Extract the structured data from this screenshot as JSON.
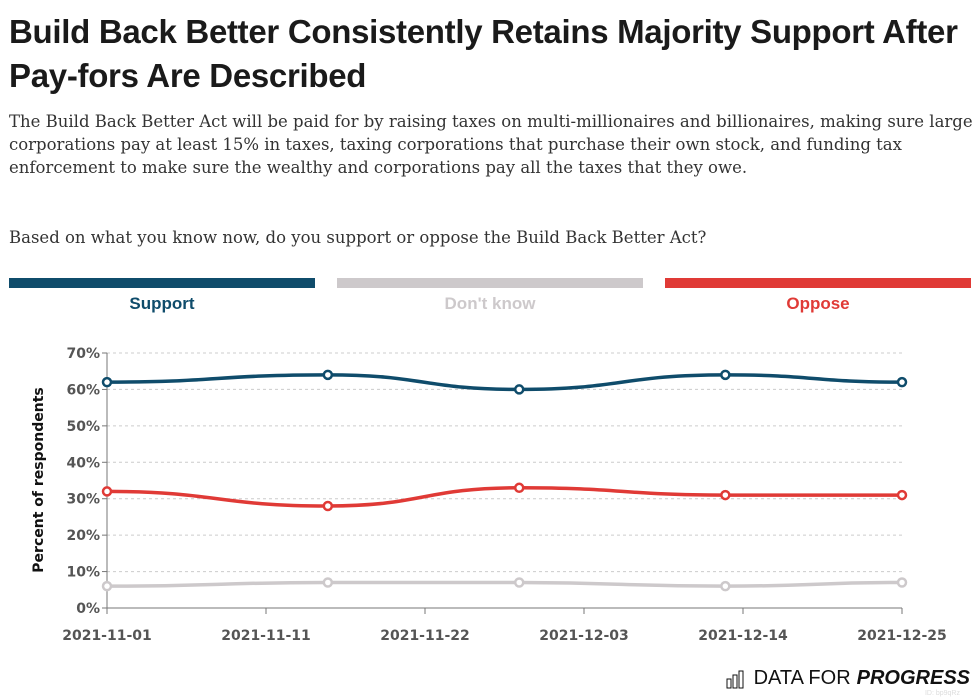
{
  "title": "Build Back Better Consistently Retains Majority Support After Pay-fors Are Described",
  "description": "The Build Back Better Act will be paid for by raising taxes on multi-millionaires and billionaires, making sure large corporations pay at least 15% in taxes, taxing corporations that purchase their own stock, and funding tax enforcement to make sure the wealthy and corporations pay all the taxes that they owe.",
  "question": "Based on what you know now, do you support or oppose the Build Back Better Act?",
  "legend": [
    {
      "label": "Support",
      "color": "#0f4c6b"
    },
    {
      "label": "Don't know",
      "color": "#cdc9cb"
    },
    {
      "label": "Oppose",
      "color": "#e03a36"
    }
  ],
  "chart_data": {
    "type": "line",
    "ylabel": "Percent of respondents",
    "ylim": [
      0,
      70
    ],
    "yticks": [
      "0%",
      "10%",
      "20%",
      "30%",
      "40%",
      "50%",
      "60%",
      "70%"
    ],
    "xlim": [
      "2021-11-01",
      "2021-12-25"
    ],
    "xticks": [
      "2021-11-01",
      "2021-11-11",
      "2021-11-22",
      "2021-12-03",
      "2021-12-14",
      "2021-12-25"
    ],
    "grid": true,
    "legend_placement": "top",
    "x": [
      "2021-11-01",
      "2021-11-16",
      "2021-11-29",
      "2021-12-13",
      "2021-12-25"
    ],
    "series": [
      {
        "name": "Support",
        "color": "#0f4c6b",
        "values": [
          62,
          64,
          60,
          64,
          62
        ]
      },
      {
        "name": "Don't know",
        "color": "#cdc9cb",
        "values": [
          6,
          7,
          7,
          6,
          7
        ]
      },
      {
        "name": "Oppose",
        "color": "#e03a36",
        "values": [
          32,
          28,
          33,
          31,
          31
        ]
      }
    ]
  },
  "logo": {
    "text_light": "DATA FOR",
    "text_bold": "PROGRESS",
    "icon": "bar-chart-icon"
  },
  "watermark": "ID: bp9qRz"
}
